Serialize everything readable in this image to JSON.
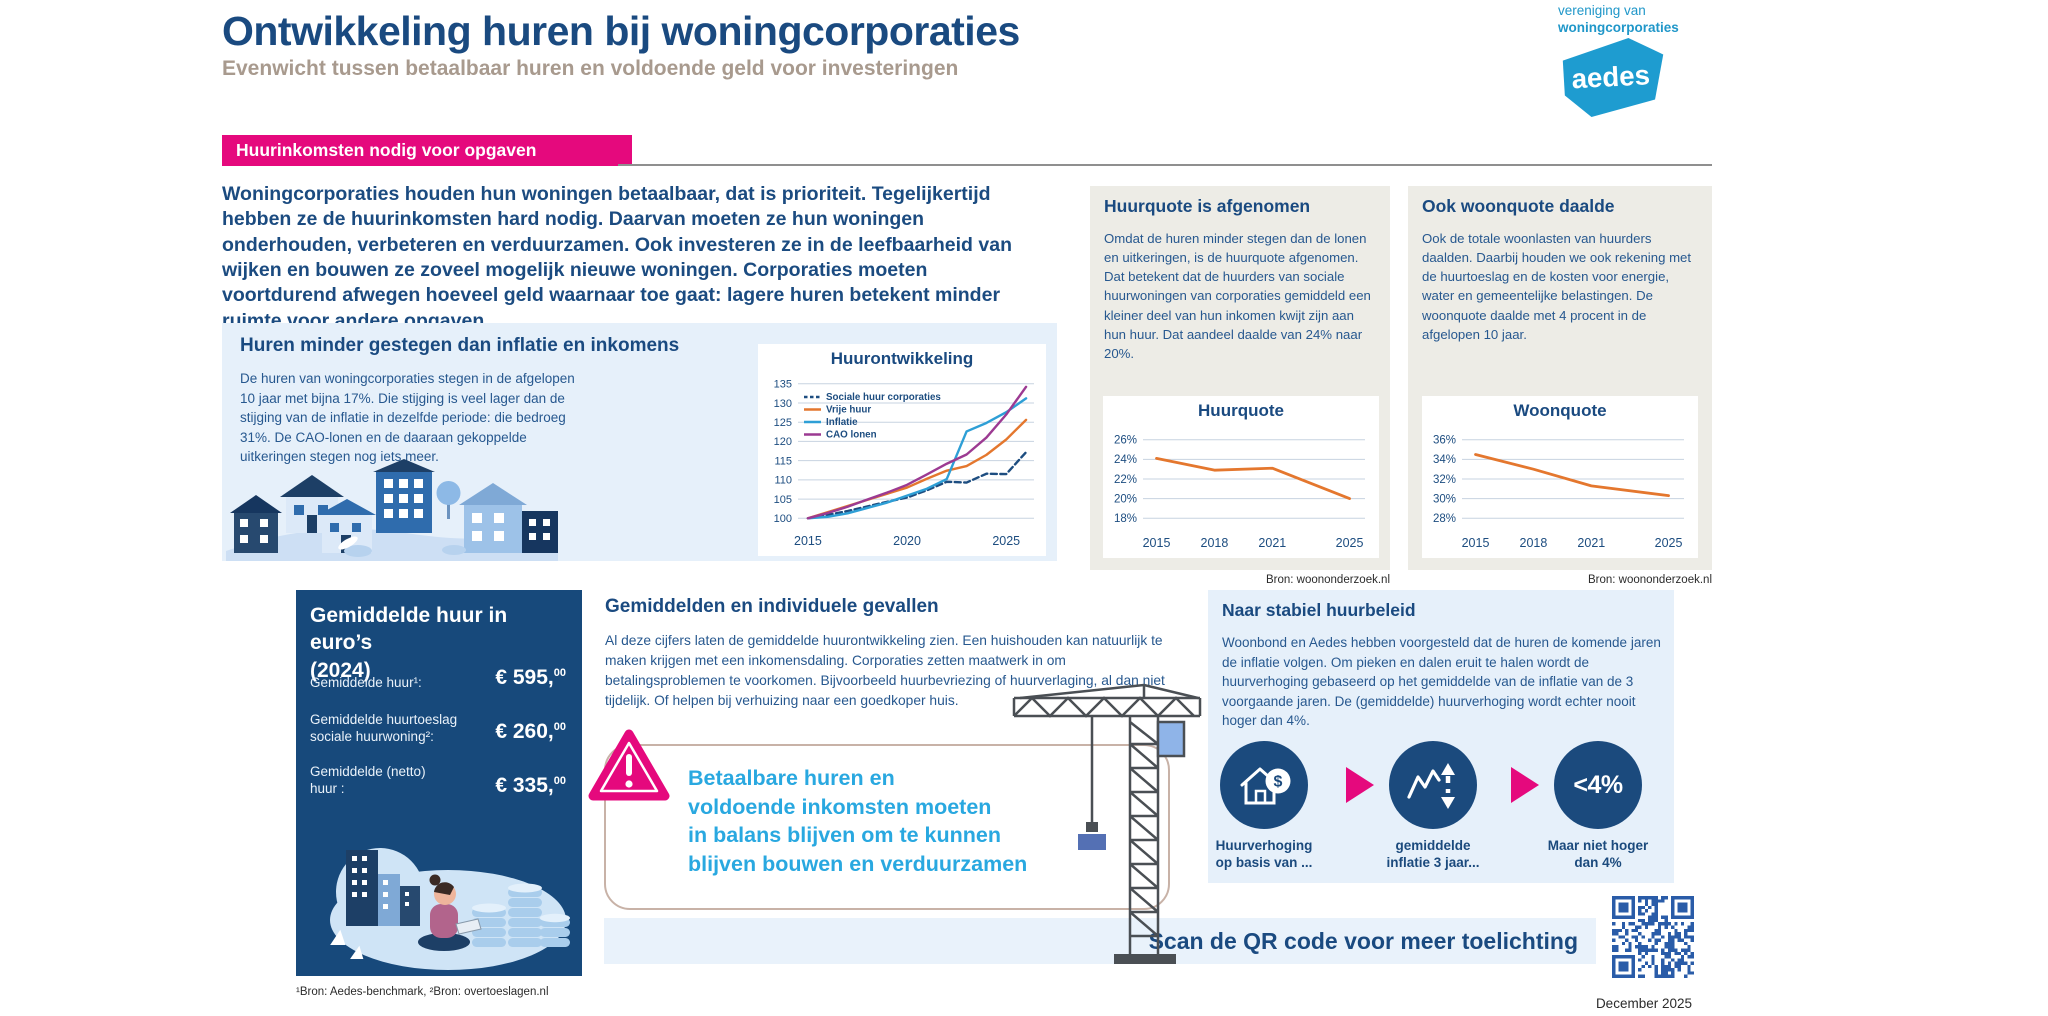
{
  "header": {
    "title": "Ontwikkeling huren bij woningcorporaties",
    "subtitle": "Evenwicht tussen betaalbaar huren en voldoende geld voor investeringen",
    "logo_line1": "vereniging van",
    "logo_line2": "woningcorporaties",
    "logo_mark": "aedes"
  },
  "banner": {
    "label": "Huurinkomsten nodig voor opgaven"
  },
  "intro": "Woningcorporaties houden hun woningen betaalbaar, dat is prioriteit. Tegelijkertijd hebben ze de huurinkomsten hard nodig. Daarvan moeten ze hun woningen onderhouden, verbeteren en verduurzamen. Ook investeren ze in de leefbaarheid van wijken en bouwen ze zoveel mogelijk nieuwe woningen. Corporaties moeten voortdurend afwegen hoeveel geld waarnaar toe gaat: lagere huren betekent minder ruimte voor andere opgaven.",
  "box_huren": {
    "title": "Huren minder gestegen dan inflatie en inkomens",
    "body": "De huren van woningcorporaties stegen in de afgelopen 10 jaar met bijna 17%. Die stijging is veel lager dan de stijging van de inflatie in dezelfde periode: die bedroeg 31%. De CAO-lonen en de daaraan gekoppelde uitkeringen stegen nog iets meer."
  },
  "box_huurquote": {
    "title": "Huurquote is afgenomen",
    "body": "Omdat de huren minder stegen dan de lonen en uitkeringen, is de huurquote afgenomen. Dat betekent dat de huurders van sociale huurwoningen van corporaties gemiddeld een kleiner deel van hun inkomen kwijt zijn aan hun huur.  Dat aandeel daalde van 24% naar 20%.",
    "source": "Bron: woononderzoek.nl"
  },
  "box_woonquote": {
    "title": "Ook woonquote daalde",
    "body": "Ook de totale woonlasten van huurders daalden. Daarbij houden we ook rekening met de huurtoeslag en de kosten voor energie, water en gemeentelijke belastingen. De woonquote daalde met 4 procent in de afgelopen 10 jaar.",
    "source": "Bron: woononderzoek.nl"
  },
  "box_gemiddelde": {
    "title": "Gemiddelde huur in euro’s\n(2024)",
    "rows": [
      {
        "label": "Gemiddelde huur¹:",
        "value": "€ 595,",
        "sup": "00"
      },
      {
        "label": "Gemiddelde huurtoeslag\nsociale huurwoning²:",
        "value": "€ 260,",
        "sup": "00"
      },
      {
        "label": "Gemiddelde (netto)\nhuur :",
        "value": "€ 335,",
        "sup": "00"
      }
    ],
    "footnote": "¹Bron: Aedes-benchmark, ²Bron: overtoeslagen.nl"
  },
  "section_gemiddelden": {
    "title": "Gemiddelden en individuele gevallen",
    "body": "Al deze cijfers laten de gemiddelde huurontwikkeling zien. Een huishouden kan natuurlijk te maken krijgen met een inkomensdaling. Corporaties zetten maatwerk in om betalingsproblemen te voorkomen. Bijvoorbeeld huurbevriezing of huurverlaging, al dan niet tijdelijk. Of helpen bij verhuizing naar een goedkoper huis.",
    "callout": "Betaalbare huren en\nvoldoende inkomsten moeten\nin balans blijven om te kunnen\nblijven bouwen en verduurzamen"
  },
  "box_huurbeleid": {
    "title": "Naar stabiel huurbeleid",
    "body": "Woonbond en Aedes hebben voorgesteld dat de huren de komende jaren de inflatie volgen. Om pieken en dalen eruit te halen wordt de huurverhoging gebaseerd op het gemiddelde van de inflatie van de 3 voorgaande jaren. De (gemiddelde) huurverhoging wordt echter nooit hoger dan 4%.",
    "steps": [
      {
        "icon": "house-euro-icon",
        "label": "Huurverhoging\nop basis van ..."
      },
      {
        "icon": "inflation-arrows-icon",
        "label": "gemiddelde\ninflatie 3 jaar..."
      },
      {
        "icon": "max-percent-icon",
        "circle_text": "<4%",
        "label": "Maar niet hoger\ndan 4%"
      }
    ]
  },
  "scan": {
    "label": "Scan de QR code voor meer toelichting"
  },
  "footer": {
    "date": "December 2025"
  },
  "colors": {
    "pink": "#e5097d",
    "navy": "#1a4a80",
    "cyan_text": "#29a8e0",
    "orange": "#e4772e",
    "line_cyan": "#2e9fd6",
    "line_purple": "#9c3a92",
    "line_navy": "#1d4d80",
    "lightblue_bg": "#e6f0fa",
    "beige_bg": "#edece6",
    "darkbox_bg": "#17497b",
    "qr_blue": "#2a5ca8",
    "logo_cyan": "#1e9cd0"
  },
  "chart_data": [
    {
      "type": "line",
      "title": "Huurontwikkeling",
      "x": [
        2015,
        2016,
        2017,
        2018,
        2019,
        2020,
        2021,
        2022,
        2023,
        2024,
        2025,
        2026
      ],
      "x_ticks": [
        2015,
        2020,
        2025
      ],
      "x_range": [
        2014.5,
        2026.4
      ],
      "y_ticks": [
        100,
        105,
        110,
        115,
        120,
        125,
        130,
        135
      ],
      "y_range": [
        98,
        136.5
      ],
      "y_suffix": "",
      "grid": true,
      "legend_position": "top-left",
      "series": [
        {
          "name": "Sociale huur corporaties",
          "color": "#1d4d80",
          "dash": true,
          "values": [
            100,
            100.9,
            101.9,
            103.1,
            104.3,
            105.4,
            107.3,
            109.5,
            109.3,
            111.6,
            111.5,
            117.2
          ]
        },
        {
          "name": "Vrije huur",
          "color": "#e4772e",
          "dash": false,
          "values": [
            100,
            101.6,
            103.2,
            104.8,
            106.4,
            108,
            110.3,
            112.4,
            113.6,
            116.5,
            120.5,
            125.6
          ]
        },
        {
          "name": "Inflatie",
          "color": "#2e9fd6",
          "dash": false,
          "values": [
            100,
            100.4,
            101.3,
            102.7,
            104.1,
            105.9,
            107.7,
            110.2,
            122.6,
            124.8,
            127.6,
            131.2
          ]
        },
        {
          "name": "CAO lonen",
          "color": "#9c3a92",
          "dash": false,
          "values": [
            100,
            101.4,
            103,
            104.9,
            106.7,
            108.7,
            111.4,
            114.2,
            116.6,
            121,
            127,
            134.2
          ]
        }
      ]
    },
    {
      "type": "line",
      "title": "Huurquote",
      "x": [
        2015,
        2018,
        2021,
        2025
      ],
      "x_ticks": [
        2015,
        2018,
        2021,
        2025
      ],
      "x_range": [
        2014.3,
        2025.8
      ],
      "y_ticks": [
        26,
        24,
        22,
        20,
        18
      ],
      "y_range": [
        17,
        27
      ],
      "y_suffix": "%",
      "grid": true,
      "series": [
        {
          "name": "Huurquote",
          "color": "#e4772e",
          "dash": false,
          "values": [
            24.1,
            22.9,
            23.1,
            20.0
          ]
        }
      ]
    },
    {
      "type": "line",
      "title": "Woonquote",
      "x": [
        2015,
        2018,
        2021,
        2025
      ],
      "x_ticks": [
        2015,
        2018,
        2021,
        2025
      ],
      "x_range": [
        2014.3,
        2025.8
      ],
      "y_ticks": [
        36,
        34,
        32,
        30,
        28
      ],
      "y_range": [
        27,
        37
      ],
      "y_suffix": "%",
      "grid": true,
      "series": [
        {
          "name": "Woonquote",
          "color": "#e4772e",
          "dash": false,
          "values": [
            34.5,
            33.0,
            31.3,
            30.3
          ]
        }
      ]
    }
  ]
}
